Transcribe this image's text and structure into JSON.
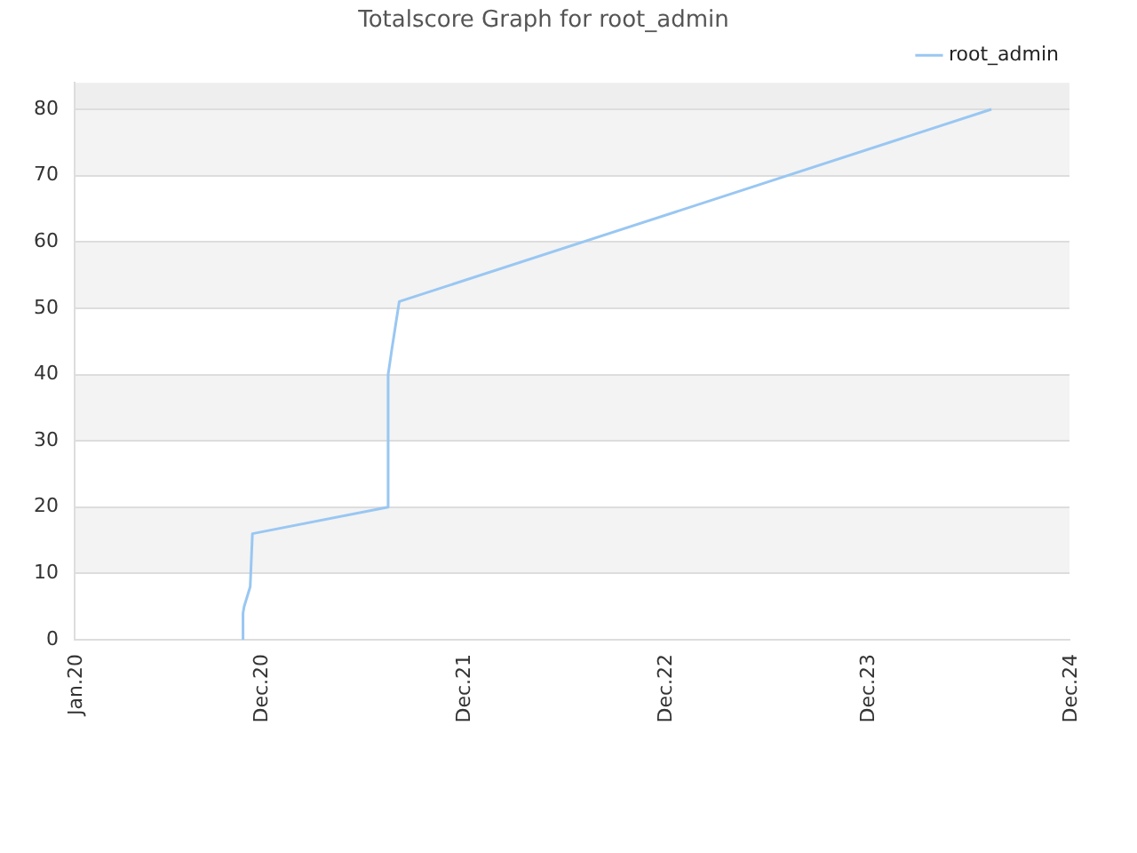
{
  "chart_data": {
    "type": "line",
    "title": "Totalscore Graph for root_admin",
    "series": [
      {
        "name": "root_admin",
        "color": "#99c7f2",
        "x": [
          "2020-10-31",
          "2020-10-31",
          "2020-11-02",
          "2020-11-13",
          "2020-11-17",
          "2021-07-20",
          "2021-07-20",
          "2021-07-27",
          "2021-08-09",
          "2024-07-13"
        ],
        "values": [
          0,
          4,
          5,
          8,
          16,
          20,
          40,
          44,
          51,
          80
        ]
      }
    ],
    "xlim": [
      "2020-01-01",
      "2024-12-01"
    ],
    "xticks": [
      {
        "value": "2020-01-01",
        "label": "Jan.20"
      },
      {
        "value": "2020-12-01",
        "label": "Dec.20"
      },
      {
        "value": "2021-12-01",
        "label": "Dec.21"
      },
      {
        "value": "2022-12-01",
        "label": "Dec.22"
      },
      {
        "value": "2023-12-01",
        "label": "Dec.23"
      },
      {
        "value": "2024-12-01",
        "label": "Dec.24"
      }
    ],
    "ylim": [
      0,
      84
    ],
    "yticks": [
      0,
      10,
      20,
      30,
      40,
      50,
      60,
      70,
      80
    ],
    "bands": [
      {
        "axis": "y",
        "from": 10,
        "to": 20,
        "color": "#f3f3f3"
      },
      {
        "axis": "y",
        "from": 30,
        "to": 40,
        "color": "#f3f3f3"
      },
      {
        "axis": "y",
        "from": 50,
        "to": 60,
        "color": "#f3f3f3"
      },
      {
        "axis": "y",
        "from": 70,
        "to": 80,
        "color": "#f3f3f3"
      },
      {
        "axis": "y",
        "from": 80,
        "to": 84,
        "color": "#eeeeee"
      }
    ],
    "grid": "y",
    "legend": "top right",
    "marker": "none",
    "line_style": "solid"
  }
}
